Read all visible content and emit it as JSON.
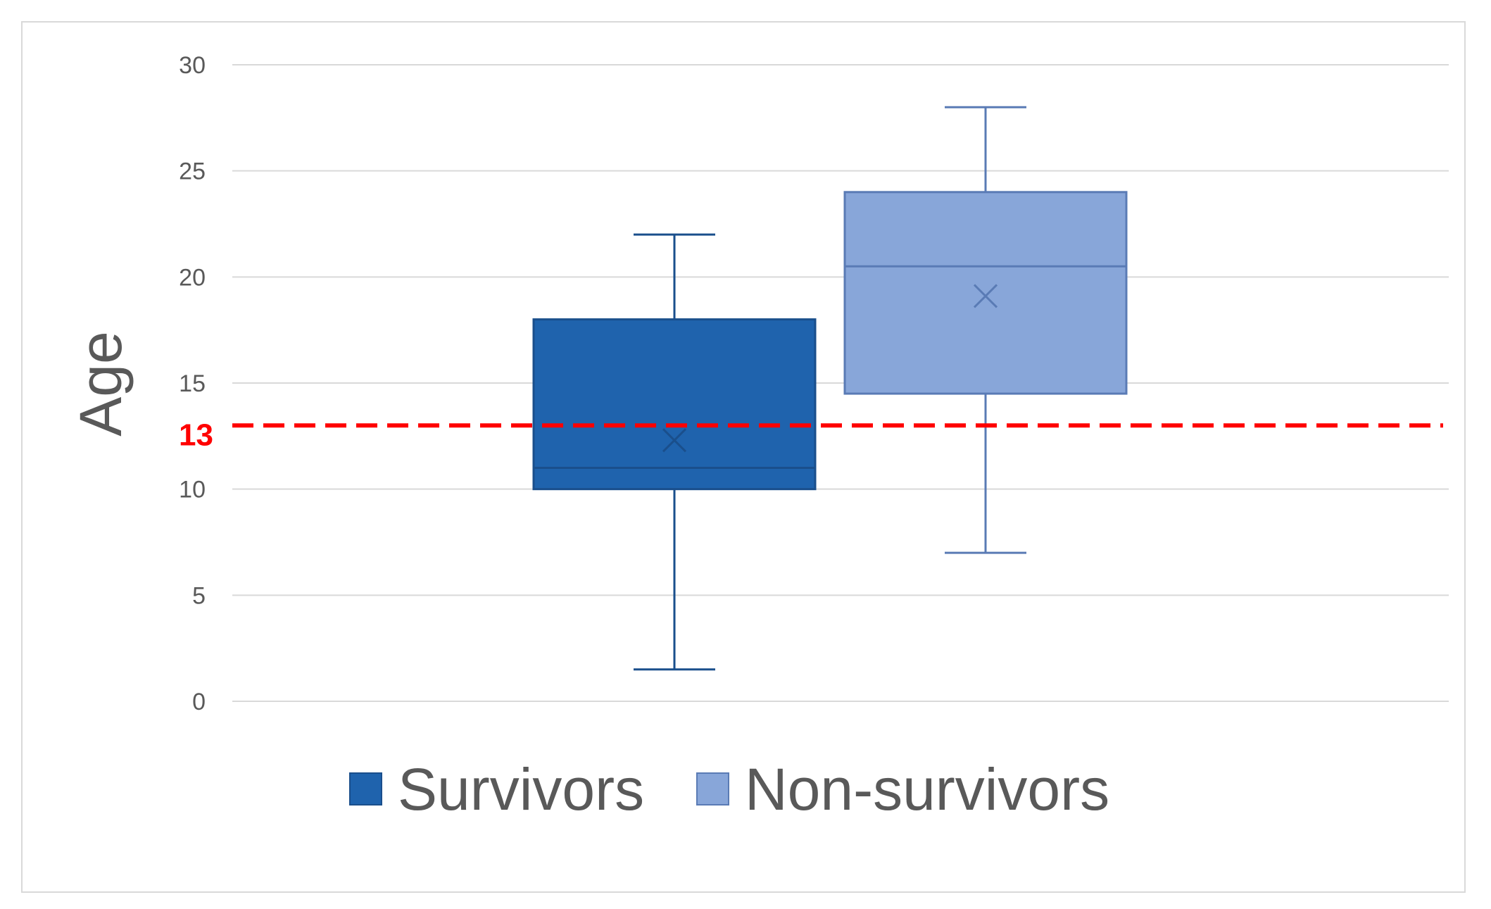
{
  "chart_data": {
    "type": "box",
    "title": "",
    "xlabel": "",
    "ylabel": "Age",
    "ylim": [
      0,
      30
    ],
    "yticks": [
      0,
      5,
      10,
      15,
      20,
      25,
      30
    ],
    "grid": true,
    "legend_position": "bottom",
    "series": [
      {
        "name": "Survivors",
        "color": "#1f63ad",
        "stroke": "#1a4f8c",
        "min": 1.5,
        "q1": 10,
        "median": 11,
        "q3": 18,
        "max": 22,
        "mean": 12.3
      },
      {
        "name": "Non-survivors",
        "color": "#88a6d9",
        "stroke": "#5a7bb5",
        "min": 7,
        "q1": 14.5,
        "median": 20.5,
        "q3": 24,
        "max": 28,
        "mean": 19.1
      }
    ],
    "reference_line": {
      "value": 13,
      "label": "13",
      "color": "#ff0000",
      "style": "dashed"
    }
  }
}
